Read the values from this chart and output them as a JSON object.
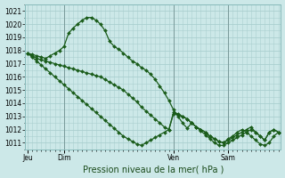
{
  "xlabel": "Pression niveau de la mer( hPa )",
  "ylim": [
    1010.5,
    1021.5
  ],
  "yticks": [
    1011,
    1012,
    1013,
    1014,
    1015,
    1016,
    1017,
    1018,
    1019,
    1020,
    1021
  ],
  "bg_color": "#cce8e8",
  "grid_color": "#aacfcf",
  "line_color": "#1a5c1a",
  "day_labels": [
    "Jeu",
    "Dim",
    "Ven",
    "Sam"
  ],
  "day_positions": [
    0,
    8,
    32,
    44
  ],
  "x_vlines": [
    8,
    32,
    44
  ],
  "total_points": 56,
  "series1": [
    1017.8,
    1017.7,
    1017.6,
    1017.5,
    1017.4,
    1017.6,
    1017.8,
    1018.0,
    1018.3,
    1019.3,
    1019.7,
    1020.0,
    1020.3,
    1020.5,
    1020.5,
    1020.3,
    1020.0,
    1019.5,
    1018.7,
    1018.3,
    1018.1,
    1017.8,
    1017.5,
    1017.2,
    1017.0,
    1016.7,
    1016.5,
    1016.2,
    1015.8,
    1015.3,
    1014.8,
    1014.2,
    1013.5,
    1013.0,
    1012.5,
    1012.1,
    1012.5,
    1012.2,
    1012.0,
    1011.8,
    1011.5,
    1011.3,
    1011.1,
    1011.0,
    1011.3,
    1011.5,
    1011.8,
    1012.0,
    1011.8,
    1011.5,
    1011.2,
    1010.9,
    1010.8,
    1011.0,
    1011.5,
    1011.8
  ],
  "series2": [
    1017.8,
    1017.6,
    1017.4,
    1017.3,
    1017.2,
    1017.1,
    1017.0,
    1016.9,
    1016.8,
    1016.7,
    1016.6,
    1016.5,
    1016.4,
    1016.3,
    1016.2,
    1016.1,
    1016.0,
    1015.8,
    1015.6,
    1015.4,
    1015.2,
    1015.0,
    1014.7,
    1014.4,
    1014.1,
    1013.7,
    1013.4,
    1013.1,
    1012.8,
    1012.5,
    1012.2,
    1012.0,
    1013.3,
    1013.2,
    1013.0,
    1012.8,
    1012.5,
    1012.2,
    1012.0,
    1011.8,
    1011.5,
    1011.3,
    1011.1,
    1011.0,
    1011.2,
    1011.4,
    1011.6,
    1011.8,
    1012.0,
    1012.2,
    1011.8,
    1011.5,
    1011.2,
    1011.8,
    1012.0,
    1011.8
  ],
  "series3": [
    1017.8,
    1017.5,
    1017.2,
    1016.9,
    1016.6,
    1016.3,
    1016.0,
    1015.7,
    1015.4,
    1015.1,
    1014.8,
    1014.5,
    1014.2,
    1013.9,
    1013.6,
    1013.3,
    1013.0,
    1012.7,
    1012.4,
    1012.1,
    1011.8,
    1011.5,
    1011.3,
    1011.1,
    1010.9,
    1010.8,
    1011.0,
    1011.2,
    1011.4,
    1011.6,
    1011.8,
    1012.0,
    1013.2,
    1013.1,
    1013.0,
    1012.8,
    1012.5,
    1012.2,
    1011.9,
    1011.6,
    1011.3,
    1011.0,
    1010.8,
    1010.8,
    1011.0,
    1011.2,
    1011.4,
    1011.6,
    1011.8,
    1012.0,
    1011.8,
    1011.5,
    1011.2,
    1011.8,
    1012.0,
    1011.8
  ],
  "marker_size": 2.0,
  "line_width": 0.9,
  "tick_fontsize": 5.5,
  "xlabel_fontsize": 7
}
